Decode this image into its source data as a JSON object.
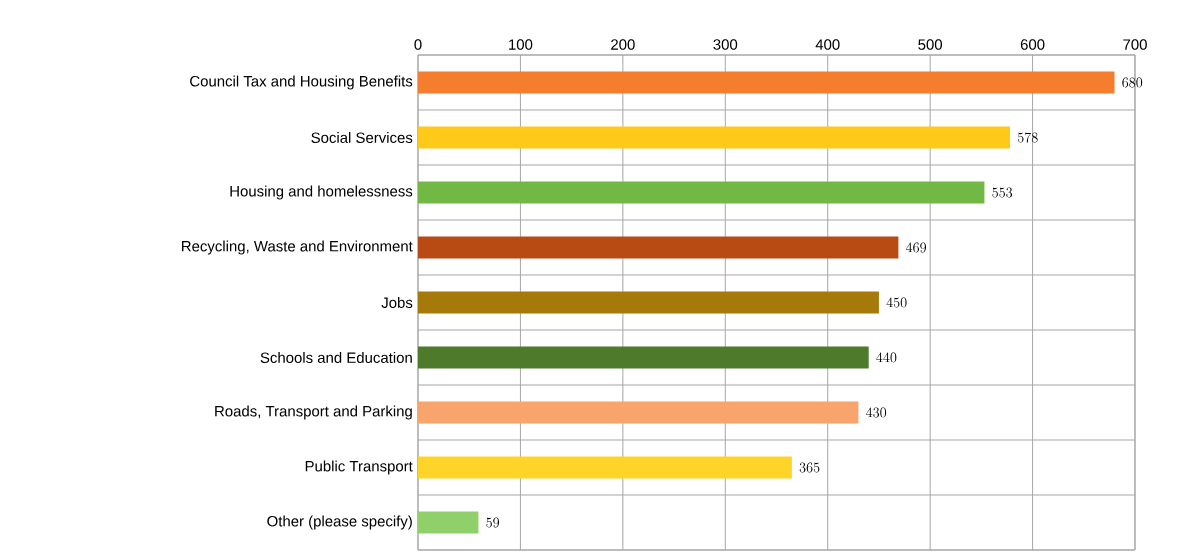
{
  "chart_data": {
    "type": "bar",
    "orientation": "horizontal",
    "categories": [
      "Council Tax and Housing Benefits",
      "Social Services",
      "Housing and homelessness",
      "Recycling, Waste and Environment",
      "Jobs",
      "Schools and Education",
      "Roads, Transport and Parking",
      "Public Transport",
      "Other (please specify)"
    ],
    "values": [
      680,
      578,
      553,
      469,
      450,
      440,
      430,
      365,
      59
    ],
    "colors": [
      "#f47d2e",
      "#ffc91a",
      "#72b844",
      "#b84a14",
      "#a57a0a",
      "#4e7a2c",
      "#f9a46c",
      "#ffd428",
      "#8fd06a"
    ],
    "xlim": [
      0,
      700
    ],
    "xticks": [
      0,
      100,
      200,
      300,
      400,
      500,
      600,
      700
    ],
    "grid": true,
    "data_labels": true
  }
}
